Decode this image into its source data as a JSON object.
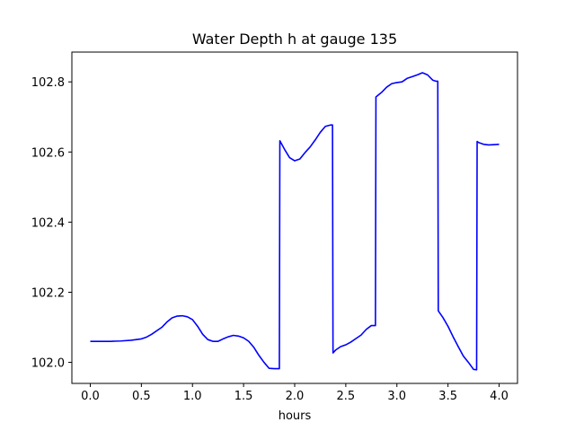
{
  "chart_data": {
    "type": "line",
    "title": "Water Depth h at gauge 135",
    "xlabel": "hours",
    "ylabel": "",
    "xlim": [
      -0.18,
      4.18
    ],
    "ylim": [
      101.94,
      102.885
    ],
    "xticks": [
      0.0,
      0.5,
      1.0,
      1.5,
      2.0,
      2.5,
      3.0,
      3.5,
      4.0
    ],
    "xtick_labels": [
      "0.0",
      "0.5",
      "1.0",
      "1.5",
      "2.0",
      "2.5",
      "3.0",
      "3.5",
      "4.0"
    ],
    "yticks": [
      102.0,
      102.2,
      102.4,
      102.6,
      102.8
    ],
    "ytick_labels": [
      "102.0",
      "102.2",
      "102.4",
      "102.6",
      "102.8"
    ],
    "grid": false,
    "series": [
      {
        "color": "#0000ff",
        "x": [
          0.0,
          0.1,
          0.2,
          0.3,
          0.4,
          0.5,
          0.55,
          0.6,
          0.7,
          0.75,
          0.8,
          0.85,
          0.9,
          0.95,
          1.0,
          1.05,
          1.1,
          1.15,
          1.2,
          1.25,
          1.3,
          1.35,
          1.4,
          1.45,
          1.5,
          1.55,
          1.6,
          1.65,
          1.7,
          1.75,
          1.8,
          1.85,
          1.855,
          1.9,
          1.95,
          2.0,
          2.05,
          2.1,
          2.15,
          2.2,
          2.25,
          2.3,
          2.35,
          2.37,
          2.375,
          2.4,
          2.45,
          2.5,
          2.55,
          2.6,
          2.65,
          2.7,
          2.75,
          2.79,
          2.795,
          2.85,
          2.9,
          2.95,
          3.0,
          3.05,
          3.1,
          3.15,
          3.2,
          3.25,
          3.3,
          3.35,
          3.38,
          3.4,
          3.405,
          3.45,
          3.5,
          3.55,
          3.6,
          3.65,
          3.7,
          3.75,
          3.78,
          3.785,
          3.8,
          3.85,
          3.9,
          3.95,
          4.0
        ],
        "values": [
          102.06,
          102.06,
          102.06,
          102.061,
          102.063,
          102.067,
          102.072,
          102.08,
          102.1,
          102.115,
          102.127,
          102.132,
          102.133,
          102.13,
          102.122,
          102.103,
          102.08,
          102.065,
          102.06,
          102.06,
          102.067,
          102.073,
          102.077,
          102.075,
          102.07,
          102.06,
          102.043,
          102.02,
          102.0,
          101.983,
          101.982,
          101.982,
          102.632,
          102.608,
          102.584,
          102.575,
          102.58,
          102.598,
          102.614,
          102.634,
          102.656,
          102.673,
          102.677,
          102.677,
          102.027,
          102.035,
          102.045,
          102.05,
          102.058,
          102.068,
          102.078,
          102.094,
          102.105,
          102.105,
          102.757,
          102.77,
          102.785,
          102.795,
          102.798,
          102.8,
          102.81,
          102.815,
          102.82,
          102.826,
          102.82,
          102.805,
          102.802,
          102.802,
          102.147,
          102.128,
          102.103,
          102.073,
          102.045,
          102.018,
          102.0,
          101.98,
          101.979,
          102.63,
          102.627,
          102.622,
          102.62,
          102.621,
          102.622
        ]
      }
    ]
  }
}
